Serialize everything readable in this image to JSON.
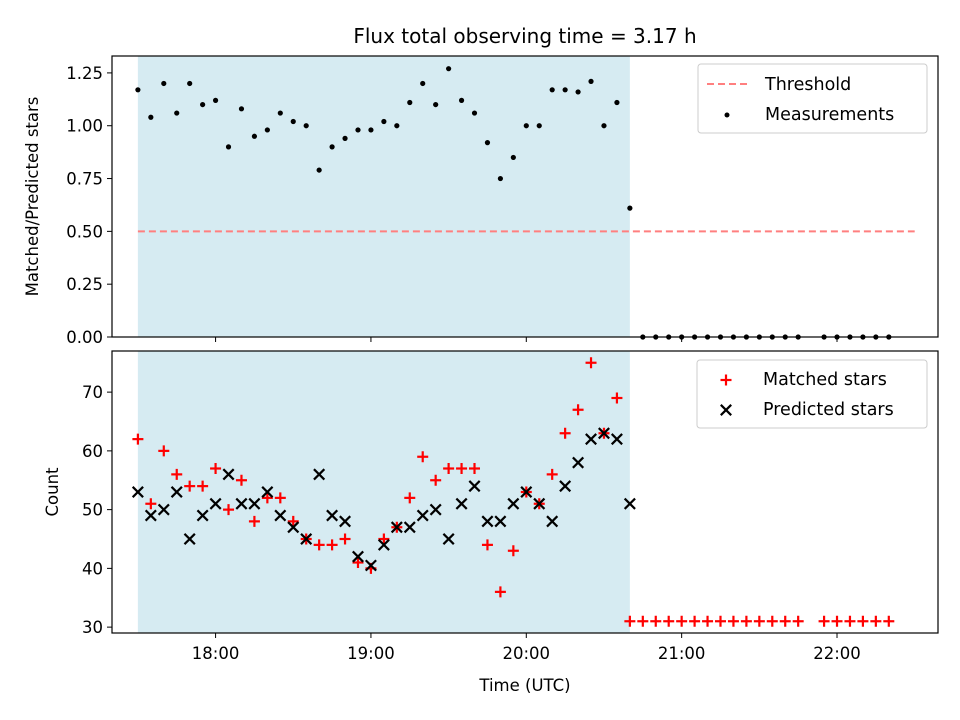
{
  "chart_data": [
    {
      "type": "scatter",
      "title": "Flux total observing time = 3.17 h",
      "xlabel": "",
      "ylabel": "Matched/Predicted stars",
      "xlim": [
        "17:20",
        "22:39"
      ],
      "ylim": [
        0,
        1.33
      ],
      "y_ticks": [
        "0.00",
        "0.25",
        "0.50",
        "0.75",
        "1.00",
        "1.25"
      ],
      "x_ticks": [
        "18:00",
        "19:00",
        "20:00",
        "21:00",
        "22:00"
      ],
      "shaded_span": [
        "17:30",
        "20:40"
      ],
      "legend_position": "upper right",
      "series": [
        {
          "name": "Threshold",
          "type": "line",
          "style": "dashed",
          "color": "#ff7f7f",
          "x": [
            "17:30",
            "22:30"
          ],
          "y": [
            0.5,
            0.5
          ]
        },
        {
          "name": "Measurements",
          "type": "scatter",
          "color": "#000000",
          "x": [
            "17:30",
            "17:35",
            "17:40",
            "17:45",
            "17:50",
            "17:55",
            "18:00",
            "18:05",
            "18:10",
            "18:15",
            "18:20",
            "18:25",
            "18:30",
            "18:35",
            "18:40",
            "18:45",
            "18:50",
            "18:55",
            "19:00",
            "19:05",
            "19:10",
            "19:15",
            "19:20",
            "19:25",
            "19:30",
            "19:35",
            "19:40",
            "19:45",
            "19:50",
            "19:55",
            "20:00",
            "20:05",
            "20:10",
            "20:15",
            "20:20",
            "20:25",
            "20:30",
            "20:35",
            "20:40",
            "20:45",
            "20:50",
            "20:55",
            "21:00",
            "21:05",
            "21:10",
            "21:15",
            "21:20",
            "21:25",
            "21:30",
            "21:35",
            "21:40",
            "21:45",
            "21:55",
            "22:00",
            "22:05",
            "22:10",
            "22:15",
            "22:20"
          ],
          "y": [
            1.17,
            1.04,
            1.2,
            1.06,
            1.2,
            1.1,
            1.12,
            0.9,
            1.08,
            0.95,
            0.98,
            1.06,
            1.02,
            1.0,
            0.79,
            0.9,
            0.94,
            0.98,
            0.98,
            1.02,
            1.0,
            1.11,
            1.2,
            1.1,
            1.27,
            1.12,
            1.06,
            0.92,
            0.75,
            0.85,
            1.0,
            1.0,
            1.17,
            1.17,
            1.16,
            1.21,
            1.0,
            1.11,
            0.61,
            0.0,
            0.0,
            0.0,
            0.0,
            0.0,
            0.0,
            0.0,
            0.0,
            0.0,
            0.0,
            0.0,
            0.0,
            0.0,
            0.0,
            0.0,
            0.0,
            0.0,
            0.0,
            0.0
          ]
        }
      ]
    },
    {
      "type": "scatter",
      "title": "",
      "xlabel": "Time (UTC)",
      "ylabel": "Count",
      "xlim": [
        "17:20",
        "22:39"
      ],
      "ylim": [
        29,
        77
      ],
      "y_ticks": [
        "30",
        "40",
        "50",
        "60",
        "70"
      ],
      "x_ticks": [
        "18:00",
        "19:00",
        "20:00",
        "21:00",
        "22:00"
      ],
      "shaded_span": [
        "17:30",
        "20:40"
      ],
      "legend_position": "upper right",
      "series": [
        {
          "name": "Matched stars",
          "marker": "+",
          "color": "#ff0000",
          "x": [
            "17:30",
            "17:35",
            "17:40",
            "17:45",
            "17:50",
            "17:55",
            "18:00",
            "18:05",
            "18:10",
            "18:15",
            "18:20",
            "18:25",
            "18:30",
            "18:35",
            "18:40",
            "18:45",
            "18:50",
            "18:55",
            "19:00",
            "19:05",
            "19:10",
            "19:15",
            "19:20",
            "19:25",
            "19:30",
            "19:35",
            "19:40",
            "19:45",
            "19:50",
            "19:55",
            "20:00",
            "20:05",
            "20:10",
            "20:15",
            "20:20",
            "20:25",
            "20:30",
            "20:35",
            "20:40",
            "20:45",
            "20:50",
            "20:55",
            "21:00",
            "21:05",
            "21:10",
            "21:15",
            "21:20",
            "21:25",
            "21:30",
            "21:35",
            "21:40",
            "21:45",
            "21:55",
            "22:00",
            "22:05",
            "22:10",
            "22:15",
            "22:20"
          ],
          "y": [
            62,
            51,
            60,
            56,
            54,
            54,
            57,
            50,
            55,
            48,
            52,
            52,
            48,
            45,
            44,
            44,
            45,
            41,
            40,
            45,
            47,
            52,
            59,
            55,
            57,
            57,
            57,
            44,
            36,
            43,
            53,
            51,
            56,
            63,
            67,
            75,
            63,
            69,
            31,
            31,
            31,
            31,
            31,
            31,
            31,
            31,
            31,
            31,
            31,
            31,
            31,
            31,
            31,
            31,
            31,
            31,
            31,
            31
          ]
        },
        {
          "name": "Predicted stars",
          "marker": "x",
          "color": "#000000",
          "x": [
            "17:30",
            "17:35",
            "17:40",
            "17:45",
            "17:50",
            "17:55",
            "18:00",
            "18:05",
            "18:10",
            "18:15",
            "18:20",
            "18:25",
            "18:30",
            "18:35",
            "18:40",
            "18:45",
            "18:50",
            "18:55",
            "19:00",
            "19:05",
            "19:10",
            "19:15",
            "19:20",
            "19:25",
            "19:30",
            "19:35",
            "19:40",
            "19:45",
            "19:50",
            "19:55",
            "20:00",
            "20:05",
            "20:10",
            "20:15",
            "20:20",
            "20:25",
            "20:30",
            "20:35",
            "20:40"
          ],
          "y": [
            53,
            49,
            50,
            53,
            45,
            49,
            51,
            56,
            51,
            51,
            53,
            49,
            47,
            45,
            56,
            49,
            48,
            42,
            40.5,
            44,
            47,
            47,
            49,
            50,
            45,
            51,
            54,
            48,
            48,
            51,
            53,
            51,
            48,
            54,
            58,
            62,
            63,
            62,
            51
          ]
        }
      ]
    }
  ]
}
